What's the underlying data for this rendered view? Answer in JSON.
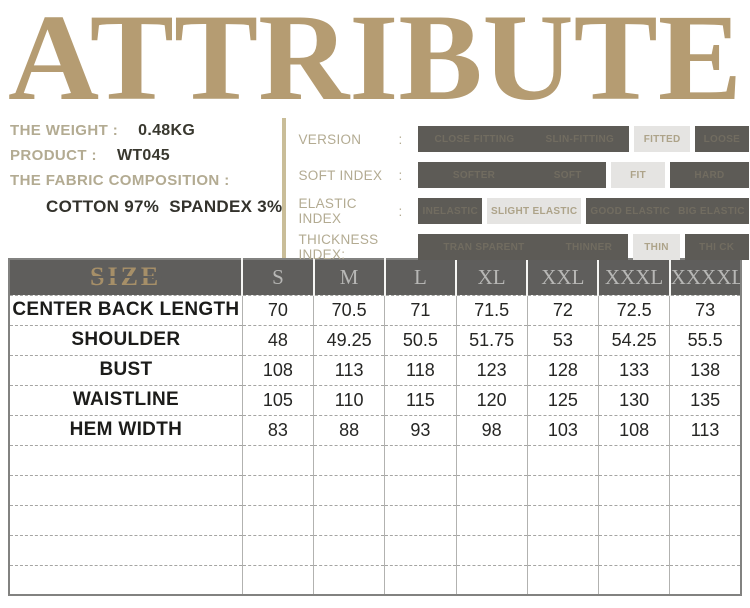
{
  "title": "ATTRIBUTE",
  "colors": {
    "title_gold": "#b59c72",
    "label_khaki": "#b3ab92",
    "chip_dark_bg": "#5d5b56",
    "chip_light_bg": "#e5e4e2",
    "chip_light_text": "#ada389",
    "table_header_bg": "#5f5e5c",
    "size_title_gold": "#a68f68"
  },
  "product_info": {
    "rows": [
      {
        "label": "THE WEIGHT :",
        "value": "0.48KG"
      },
      {
        "label": "PRODUCT :",
        "value": "WT045"
      },
      {
        "label": "THE FABRIC COMPOSITION :",
        "value": ""
      }
    ],
    "fabric_value": "COTTON 97%  SPANDEX 3%"
  },
  "index_panel": {
    "rows": [
      {
        "label": "VERSION",
        "colon": ":",
        "options": [
          {
            "text": "CLOSE FITTING",
            "variant": "dark"
          },
          {
            "text": "SLIN-FITTING",
            "variant": "dark"
          },
          {
            "text": "FITTED",
            "variant": "light"
          },
          {
            "text": "LOOSE",
            "variant": "dark"
          }
        ]
      },
      {
        "label": "SOFT INDEX",
        "colon": ":",
        "options": [
          {
            "text": "SOFTER",
            "variant": "dark"
          },
          {
            "text": "SOFT",
            "variant": "dark"
          },
          {
            "text": "FIT",
            "variant": "light"
          },
          {
            "text": "HARD",
            "variant": "dark"
          }
        ]
      },
      {
        "label": "ELASTIC INDEX",
        "colon": ":",
        "options": [
          {
            "text": "INELASTIC",
            "variant": "dark"
          },
          {
            "text": "SLIGHT ELASTIC",
            "variant": "light"
          },
          {
            "text": "GOOD ELASTIC",
            "variant": "dark"
          },
          {
            "text": "BIG ELASTIC",
            "variant": "dark"
          }
        ]
      },
      {
        "label": "THICKNESS INDEX:",
        "colon": "",
        "options": [
          {
            "text": "TRAN SPARENT",
            "variant": "dark"
          },
          {
            "text": "THINNER",
            "variant": "dark"
          },
          {
            "text": "THIN",
            "variant": "light"
          },
          {
            "text": "THI CK",
            "variant": "dark"
          }
        ]
      }
    ]
  },
  "size_table": {
    "header": [
      "SIZE",
      "S",
      "M",
      "L",
      "XL",
      "XXL",
      "XXXL",
      "XXXXL"
    ],
    "rows": [
      {
        "label": "CENTER BACK LENGTH",
        "values": [
          "70",
          "70.5",
          "71",
          "71.5",
          "72",
          "72.5",
          "73"
        ]
      },
      {
        "label": "SHOULDER",
        "values": [
          "48",
          "49.25",
          "50.5",
          "51.75",
          "53",
          "54.25",
          "55.5"
        ]
      },
      {
        "label": "BUST",
        "values": [
          "108",
          "113",
          "118",
          "123",
          "128",
          "133",
          "138"
        ]
      },
      {
        "label": "WAISTLINE",
        "values": [
          "105",
          "110",
          "115",
          "120",
          "125",
          "130",
          "135"
        ]
      },
      {
        "label": "HEM WIDTH",
        "values": [
          "83",
          "88",
          "93",
          "98",
          "103",
          "108",
          "113"
        ]
      }
    ],
    "empty_row_count": 5
  }
}
